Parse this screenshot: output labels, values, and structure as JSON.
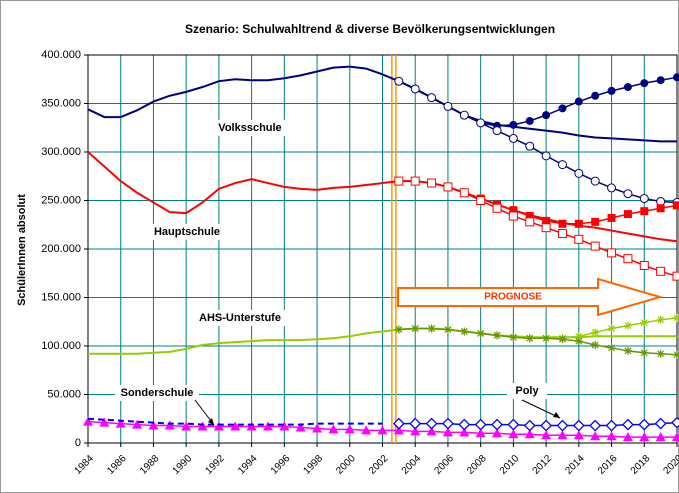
{
  "chart_data": {
    "type": "line",
    "title": "Szenario: Schulwahltrend & diverse Bevölkerungsentwicklungen",
    "ylabel": "SchülerInnen absolut",
    "annotation": "PROGNOSE",
    "x": [
      1984,
      1985,
      1986,
      1987,
      1988,
      1989,
      1990,
      1991,
      1992,
      1993,
      1994,
      1995,
      1996,
      1997,
      1998,
      1999,
      2000,
      2001,
      2002,
      2003,
      2004,
      2005,
      2006,
      2007,
      2008,
      2009,
      2010,
      2011,
      2012,
      2013,
      2014,
      2015,
      2016,
      2017,
      2018,
      2019,
      2020
    ],
    "xlim": [
      1984,
      2020
    ],
    "xticks": [
      1984,
      1986,
      1988,
      1990,
      1992,
      1994,
      1996,
      1998,
      2000,
      2002,
      2004,
      2006,
      2008,
      2010,
      2012,
      2014,
      2016,
      2018,
      2020
    ],
    "ylim": [
      0,
      400000
    ],
    "yticks": [
      0,
      {
        "value": 50000,
        "label": "50.000"
      },
      {
        "value": 100000,
        "label": "100.000"
      },
      {
        "value": 150000,
        "label": "150.000"
      },
      {
        "value": 200000,
        "label": "200.000"
      },
      {
        "value": 250000,
        "label": "250.000"
      },
      {
        "value": 300000,
        "label": "300.000"
      },
      {
        "value": 350000,
        "label": "350.000"
      },
      {
        "value": 400000,
        "label": "400.000"
      }
    ],
    "grid": true,
    "series": [
      {
        "name": "Volksschule",
        "color": "#000080",
        "marker": "none",
        "values": [
          344000,
          336000,
          336000,
          343000,
          352000,
          358000,
          362000,
          367000,
          373000,
          375000,
          374000,
          374000,
          376000,
          379000,
          383000,
          387000,
          388000,
          386000,
          380000,
          373000,
          365000,
          356000,
          347000,
          338000,
          332000,
          328000,
          326000,
          324000,
          322000,
          320000,
          317000,
          315000,
          314000,
          313000,
          312000,
          311000,
          311000
        ]
      },
      {
        "color": "#000080",
        "marker": "circle-filled",
        "values": [
          null,
          null,
          null,
          null,
          null,
          null,
          null,
          null,
          null,
          null,
          null,
          null,
          null,
          null,
          null,
          null,
          null,
          null,
          null,
          373000,
          365000,
          356000,
          347000,
          338000,
          330000,
          327000,
          328000,
          332000,
          338000,
          345000,
          352000,
          358000,
          363000,
          367000,
          371000,
          374000,
          377000
        ]
      },
      {
        "color": "#000080",
        "marker": "circle-open",
        "values": [
          null,
          null,
          null,
          null,
          null,
          null,
          null,
          null,
          null,
          null,
          null,
          null,
          null,
          null,
          null,
          null,
          null,
          null,
          null,
          373000,
          365000,
          356000,
          347000,
          338000,
          330000,
          322000,
          314000,
          306000,
          296000,
          287000,
          278000,
          270000,
          263000,
          257000,
          252000,
          249000,
          248000
        ]
      },
      {
        "name": "Hauptschule",
        "color": "#ff0000",
        "marker": "none",
        "values": [
          300000,
          285000,
          270000,
          258000,
          248000,
          238000,
          237000,
          248000,
          262000,
          268000,
          272000,
          268000,
          264000,
          262000,
          261000,
          263000,
          264000,
          266000,
          268000,
          270000,
          270000,
          268000,
          264000,
          258000,
          252000,
          246000,
          240000,
          235000,
          231000,
          227000,
          224000,
          222000,
          219000,
          216000,
          213000,
          210000,
          208000
        ]
      },
      {
        "color": "#ff0000",
        "marker": "square-filled",
        "values": [
          null,
          null,
          null,
          null,
          null,
          null,
          null,
          null,
          null,
          null,
          null,
          null,
          null,
          null,
          null,
          null,
          null,
          null,
          null,
          270000,
          270000,
          268000,
          264000,
          258000,
          252000,
          246000,
          240000,
          234000,
          229000,
          226000,
          226000,
          228000,
          232000,
          236000,
          239000,
          242000,
          245000
        ]
      },
      {
        "color": "#ff0000",
        "marker": "square-open",
        "values": [
          null,
          null,
          null,
          null,
          null,
          null,
          null,
          null,
          null,
          null,
          null,
          null,
          null,
          null,
          null,
          null,
          null,
          null,
          null,
          270000,
          270000,
          268000,
          264000,
          258000,
          250000,
          242000,
          234000,
          228000,
          222000,
          216000,
          210000,
          203000,
          196000,
          190000,
          183000,
          177000,
          172000
        ]
      },
      {
        "name": "AHS-Unterstufe",
        "color": "#99cc00",
        "marker": "none",
        "values": [
          92000,
          92000,
          92000,
          92000,
          93000,
          94000,
          97000,
          101000,
          103000,
          104000,
          105000,
          106000,
          106000,
          106000,
          107000,
          108000,
          110000,
          113000,
          115000,
          117000,
          118000,
          118000,
          117000,
          115000,
          113000,
          111000,
          110000,
          109000,
          109000,
          109000,
          109000,
          110000,
          110000,
          110000,
          110000,
          110000,
          110000
        ]
      },
      {
        "color": "#99cc00",
        "marker": "star",
        "values": [
          null,
          null,
          null,
          null,
          null,
          null,
          null,
          null,
          null,
          null,
          null,
          null,
          null,
          null,
          null,
          null,
          null,
          null,
          null,
          117000,
          118000,
          118000,
          117000,
          115000,
          113000,
          111000,
          109000,
          108000,
          108000,
          108000,
          110000,
          114000,
          118000,
          121000,
          124000,
          127000,
          129000
        ]
      },
      {
        "color": "#669900",
        "marker": "star",
        "values": [
          null,
          null,
          null,
          null,
          null,
          null,
          null,
          null,
          null,
          null,
          null,
          null,
          null,
          null,
          null,
          null,
          null,
          null,
          null,
          117000,
          118000,
          118000,
          117000,
          115000,
          113000,
          111000,
          109000,
          108000,
          108000,
          107000,
          105000,
          101000,
          98000,
          95000,
          93000,
          92000,
          91000
        ]
      },
      {
        "name": "Sonderschule",
        "color": "#ff00ff",
        "marker": "triangle",
        "values": [
          22000,
          21000,
          20000,
          19000,
          18000,
          18000,
          17000,
          17000,
          17000,
          17000,
          17000,
          17000,
          17000,
          16000,
          15000,
          14000,
          14000,
          13000,
          13000,
          13000,
          12000,
          12000,
          11000,
          11000,
          10000,
          10000,
          9000,
          9000,
          8000,
          8000,
          8000,
          7000,
          7000,
          6000,
          6000,
          6000,
          6000
        ]
      },
      {
        "color": "#0000ff",
        "marker": "none",
        "dashed": true,
        "values": [
          25000,
          24000,
          23000,
          22000,
          21000,
          20000,
          20000,
          19000,
          19000,
          19000,
          19000,
          19000,
          19000,
          19000,
          20000,
          20000,
          20000,
          20000,
          20000,
          null,
          null,
          null,
          null,
          null,
          null,
          null,
          null,
          null,
          null,
          null,
          null,
          null,
          null,
          null,
          null,
          null,
          null
        ]
      },
      {
        "name": "Poly",
        "color": "#0000ff",
        "marker": "diamond",
        "values": [
          null,
          null,
          null,
          null,
          null,
          null,
          null,
          null,
          null,
          null,
          null,
          null,
          null,
          null,
          null,
          null,
          null,
          null,
          null,
          20000,
          20000,
          20000,
          20000,
          19000,
          19000,
          19000,
          19000,
          18000,
          18000,
          18000,
          18000,
          18000,
          18000,
          19000,
          19000,
          20000,
          21000
        ]
      }
    ]
  }
}
